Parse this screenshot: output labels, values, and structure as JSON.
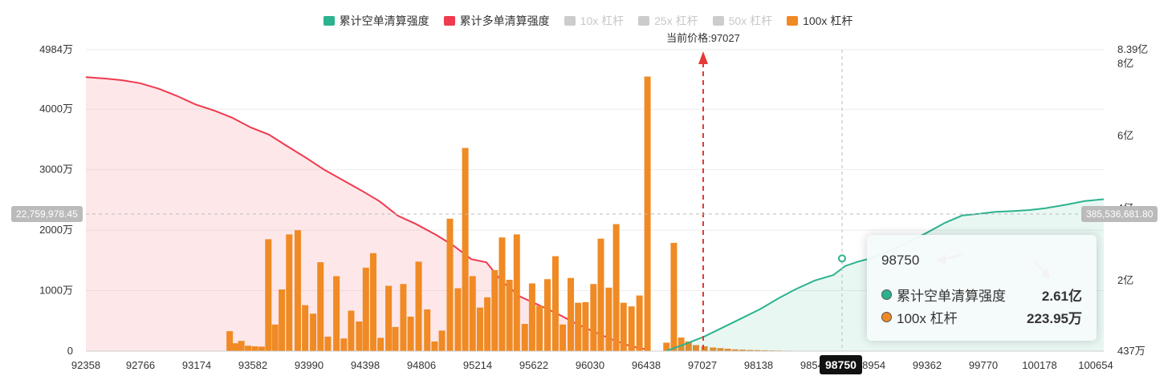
{
  "legend": [
    {
      "label": "累计空单清算强度",
      "color": "#2bb38e",
      "active": true
    },
    {
      "label": "累计多单清算强度",
      "color": "#f03a4e",
      "active": true
    },
    {
      "label": "10x 杠杆",
      "color": "#cccccc",
      "active": false
    },
    {
      "label": "25x 杠杆",
      "color": "#cccccc",
      "active": false
    },
    {
      "label": "50x 杠杆",
      "color": "#cccccc",
      "active": false
    },
    {
      "label": "100x 杠杆",
      "color": "#f08a24",
      "active": true
    }
  ],
  "current_price_label": "当前价格:97027",
  "crosshair": {
    "y_left": "22,759,978.45",
    "y_right": "385,536,681.80",
    "x": "98750"
  },
  "tooltip": {
    "title": "98750",
    "rows": [
      {
        "name": "累计空单清算强度",
        "value": "2.61亿",
        "color": "#2bb38e"
      },
      {
        "name": "100x 杠杆",
        "value": "223.95万",
        "color": "#f08a24"
      }
    ]
  },
  "chart_data": {
    "type": "bar",
    "title": "",
    "x_ticks": [
      "92358",
      "92766",
      "93174",
      "93582",
      "93990",
      "94398",
      "94806",
      "95214",
      "95622",
      "96030",
      "96438",
      "97027",
      "98138",
      "98546",
      "98954",
      "99362",
      "99770",
      "100178",
      "100654"
    ],
    "left_axis": {
      "ticks": [
        "0",
        "1000万",
        "2000万",
        "3000万",
        "4000万",
        "4984万"
      ],
      "values": [
        0,
        1000,
        2000,
        3000,
        4000,
        4984
      ],
      "unit": "万"
    },
    "right_axis": {
      "ticks": [
        "437万",
        "2亿",
        "4亿",
        "6亿",
        "8亿",
        "8.39亿"
      ],
      "values": [
        0.0437,
        2,
        4,
        6,
        8,
        8.39
      ],
      "unit": "亿"
    },
    "current_price": 97027,
    "bars_100x": {
      "name": "100x 杠杆",
      "color": "#f08a24",
      "x": [
        93530,
        93575,
        93625,
        93680,
        93735,
        93790,
        93845,
        93900,
        93955,
        94015,
        94085,
        94145,
        94210,
        94270,
        94330,
        94400,
        94460,
        94520,
        94585,
        94640,
        94700,
        94760,
        94825,
        94880,
        94945,
        95005,
        95070,
        95140,
        95200,
        95260,
        95325,
        95390,
        95450,
        95510,
        95570,
        95630,
        95690,
        95750,
        95810,
        95870,
        95935,
        95995,
        96055,
        96120,
        96185,
        96245,
        96310,
        96370,
        96430,
        96495,
        96555,
        96620,
        96680,
        96740,
        96805,
        96870,
        96935,
        97090,
        97150,
        97210,
        97270,
        97330,
        97400,
        97470,
        97530,
        97590,
        97650,
        97710,
        97770,
        97830,
        97890,
        97950,
        98010,
        98075,
        98130,
        98200,
        98650
      ],
      "values": [
        330,
        130,
        170,
        90,
        80,
        75,
        1850,
        440,
        1020,
        1930,
        2000,
        760,
        620,
        1470,
        240,
        1240,
        210,
        670,
        490,
        1380,
        1620,
        220,
        1080,
        400,
        1110,
        570,
        1480,
        690,
        160,
        340,
        2190,
        1040,
        3360,
        1240,
        720,
        890,
        1340,
        1880,
        1180,
        1930,
        450,
        1120,
        750,
        1190,
        1570,
        440,
        1210,
        800,
        810,
        1110,
        1860,
        1050,
        2100,
        800,
        740,
        920,
        4540,
        140,
        1790,
        224,
        160,
        100,
        80,
        60,
        50,
        40,
        30,
        25,
        20,
        18,
        15,
        12,
        10,
        8,
        6,
        5,
        3
      ]
    },
    "series": [
      {
        "name": "累计多单清算强度",
        "color": "#f03a4e",
        "axis": "left",
        "x": [
          92358,
          92500,
          92650,
          92800,
          92950,
          93100,
          93250,
          93400,
          93550,
          93700,
          93850,
          93990,
          94150,
          94300,
          94450,
          94600,
          94750,
          94900,
          95050,
          95214,
          95350,
          95500,
          95622,
          95750,
          95900,
          96030,
          96200,
          96350,
          96500,
          96650,
          96800,
          96950
        ],
        "values": [
          4530,
          4510,
          4480,
          4430,
          4340,
          4220,
          4080,
          3980,
          3860,
          3700,
          3580,
          3400,
          3200,
          3000,
          2830,
          2660,
          2480,
          2240,
          2100,
          1920,
          1750,
          1520,
          1470,
          1150,
          900,
          780,
          620,
          460,
          320,
          190,
          80,
          20
        ]
      },
      {
        "name": "累计空单清算强度",
        "color": "#2bb38e",
        "axis": "right",
        "x": [
          97090,
          97250,
          97400,
          97550,
          97700,
          97850,
          98000,
          98138,
          98300,
          98450,
          98546,
          98650,
          98750,
          98900,
          99050,
          99200,
          99362,
          99500,
          99650,
          99770,
          99900,
          100050,
          100178,
          100350,
          100500,
          100654
        ],
        "values": [
          0.05,
          0.25,
          0.45,
          0.7,
          0.95,
          1.2,
          1.5,
          1.75,
          2.0,
          2.15,
          2.4,
          2.52,
          2.61,
          2.8,
          3.05,
          3.3,
          3.6,
          3.8,
          3.85,
          3.9,
          3.92,
          3.95,
          4.0,
          4.1,
          4.2,
          4.25
        ]
      }
    ],
    "legend_position": "top-center",
    "grid": true
  }
}
